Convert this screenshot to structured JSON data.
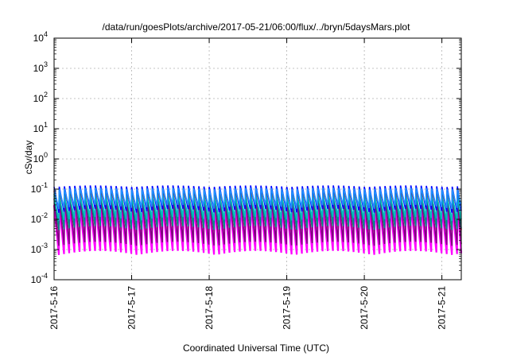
{
  "chart_data": {
    "type": "line",
    "title": "/data/run/goesPlots/archive/2017-05-21/06:00/flux/../bryn/5daysMars.plot",
    "xlabel": "Coordinated Universal Time (UTC)",
    "ylabel": "cSv/day",
    "y_scale": "log",
    "ylim": [
      0.0001,
      10000
    ],
    "xlim": [
      "2017-05-16T00:00",
      "2017-05-21T06:00"
    ],
    "grid": true,
    "y_ticks": [
      {
        "base": "10",
        "exp": "-4"
      },
      {
        "base": "10",
        "exp": "-3"
      },
      {
        "base": "10",
        "exp": "-2"
      },
      {
        "base": "10",
        "exp": "-1"
      },
      {
        "base": "10",
        "exp": "0"
      },
      {
        "base": "10",
        "exp": "1"
      },
      {
        "base": "10",
        "exp": "2"
      },
      {
        "base": "10",
        "exp": "3"
      },
      {
        "base": "10",
        "exp": "4"
      }
    ],
    "x_ticks": [
      "2017-5-16",
      "2017-5-17",
      "2017-5-18",
      "2017-5-19",
      "2017-5-20",
      "2017-5-21"
    ],
    "pattern": {
      "description_values": "sawtooth, peaks at ~1.5-hour period",
      "period_hours": 1.6,
      "series": [
        {
          "color": "#ff0000",
          "peak": 0.09,
          "trough": 0.0035
        },
        {
          "color": "#ff00ff",
          "peak": 0.03,
          "trough": 0.0006
        },
        {
          "color": "#800080",
          "peak": 0.05,
          "trough": 0.0012
        },
        {
          "color": "#008b8b",
          "peak": 0.07,
          "trough": 0.004
        },
        {
          "color": "#00bfbf",
          "peak": 0.06,
          "trough": 0.008
        },
        {
          "color": "#0000ff",
          "peak": 0.12,
          "trough": 0.015
        },
        {
          "color": "#1e90ff",
          "peak": 0.1,
          "trough": 0.02
        }
      ]
    }
  }
}
